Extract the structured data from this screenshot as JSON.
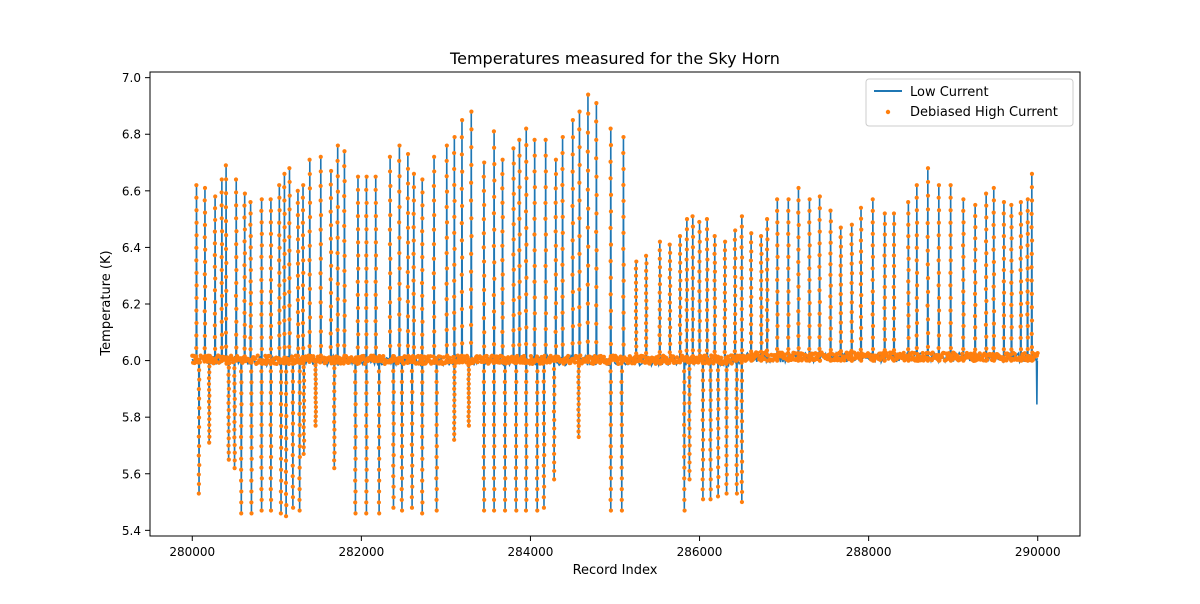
{
  "chart_data": {
    "type": "line",
    "title": "Temperatures measured for the Sky Horn",
    "xlabel": "Record Index",
    "ylabel": "Temperature (K)",
    "xlim": [
      279500,
      290500
    ],
    "ylim": [
      5.38,
      7.02
    ],
    "x_ticks": [
      280000,
      282000,
      284000,
      286000,
      288000,
      290000
    ],
    "y_ticks": [
      5.4,
      5.6,
      5.8,
      6.0,
      6.2,
      6.4,
      6.6,
      6.8,
      7.0
    ],
    "x_tick_labels": [
      "280000",
      "282000",
      "284000",
      "286000",
      "288000",
      "290000"
    ],
    "y_tick_labels": [
      "5.4",
      "5.6",
      "5.8",
      "6.0",
      "6.2",
      "6.4",
      "6.6",
      "6.8",
      "7.0"
    ],
    "grid": false,
    "legend": {
      "position": "top-right",
      "entries": [
        "Low Current",
        "Debiased High Current"
      ]
    },
    "baseline": 6.0,
    "x_range": [
      280000,
      290000
    ],
    "series": [
      {
        "name": "Low Current",
        "kind": "line",
        "color": "#1f77b4"
      },
      {
        "name": "Debiased High Current",
        "kind": "scatter",
        "color": "#ff7f0e"
      }
    ],
    "spikes": [
      {
        "x": 280050,
        "peak": 6.62
      },
      {
        "x": 280150,
        "peak": 6.61
      },
      {
        "x": 280270,
        "peak": 6.58
      },
      {
        "x": 280350,
        "peak": 6.64
      },
      {
        "x": 280400,
        "peak": 6.69
      },
      {
        "x": 280520,
        "peak": 6.64
      },
      {
        "x": 280620,
        "peak": 6.59
      },
      {
        "x": 280690,
        "peak": 6.56
      },
      {
        "x": 280820,
        "peak": 6.57
      },
      {
        "x": 280930,
        "peak": 6.57
      },
      {
        "x": 281030,
        "peak": 6.62
      },
      {
        "x": 281090,
        "peak": 6.66
      },
      {
        "x": 281150,
        "peak": 6.68
      },
      {
        "x": 281250,
        "peak": 6.6
      },
      {
        "x": 281310,
        "peak": 6.62
      },
      {
        "x": 281390,
        "peak": 6.71
      },
      {
        "x": 281520,
        "peak": 6.72
      },
      {
        "x": 281640,
        "peak": 6.67
      },
      {
        "x": 281720,
        "peak": 6.76
      },
      {
        "x": 281800,
        "peak": 6.74
      },
      {
        "x": 281960,
        "peak": 6.65
      },
      {
        "x": 282060,
        "peak": 6.65
      },
      {
        "x": 282170,
        "peak": 6.65
      },
      {
        "x": 282340,
        "peak": 6.72
      },
      {
        "x": 282450,
        "peak": 6.76
      },
      {
        "x": 282550,
        "peak": 6.73
      },
      {
        "x": 282620,
        "peak": 6.66
      },
      {
        "x": 282720,
        "peak": 6.64
      },
      {
        "x": 282860,
        "peak": 6.72
      },
      {
        "x": 283010,
        "peak": 6.76
      },
      {
        "x": 283100,
        "peak": 6.79
      },
      {
        "x": 283190,
        "peak": 6.85
      },
      {
        "x": 283300,
        "peak": 6.88
      },
      {
        "x": 283450,
        "peak": 6.7
      },
      {
        "x": 283570,
        "peak": 6.81
      },
      {
        "x": 283670,
        "peak": 6.71
      },
      {
        "x": 283800,
        "peak": 6.75
      },
      {
        "x": 283870,
        "peak": 6.78
      },
      {
        "x": 283950,
        "peak": 6.82
      },
      {
        "x": 284050,
        "peak": 6.78
      },
      {
        "x": 284180,
        "peak": 6.78
      },
      {
        "x": 284300,
        "peak": 6.71
      },
      {
        "x": 284380,
        "peak": 6.79
      },
      {
        "x": 284500,
        "peak": 6.85
      },
      {
        "x": 284580,
        "peak": 6.88
      },
      {
        "x": 284680,
        "peak": 6.94
      },
      {
        "x": 284780,
        "peak": 6.91
      },
      {
        "x": 284950,
        "peak": 6.82
      },
      {
        "x": 285100,
        "peak": 6.79
      },
      {
        "x": 285250,
        "peak": 6.35
      },
      {
        "x": 285370,
        "peak": 6.37
      },
      {
        "x": 285530,
        "peak": 6.42
      },
      {
        "x": 285650,
        "peak": 6.41
      },
      {
        "x": 285770,
        "peak": 6.44
      },
      {
        "x": 285850,
        "peak": 6.5
      },
      {
        "x": 285920,
        "peak": 6.51
      },
      {
        "x": 286000,
        "peak": 6.49
      },
      {
        "x": 286090,
        "peak": 6.5
      },
      {
        "x": 286180,
        "peak": 6.44
      },
      {
        "x": 286300,
        "peak": 6.42
      },
      {
        "x": 286420,
        "peak": 6.46
      },
      {
        "x": 286500,
        "peak": 6.51
      },
      {
        "x": 286610,
        "peak": 6.45
      },
      {
        "x": 286730,
        "peak": 6.44
      },
      {
        "x": 286800,
        "peak": 6.5
      },
      {
        "x": 286920,
        "peak": 6.57
      },
      {
        "x": 287050,
        "peak": 6.57
      },
      {
        "x": 287170,
        "peak": 6.61
      },
      {
        "x": 287300,
        "peak": 6.57
      },
      {
        "x": 287420,
        "peak": 6.58
      },
      {
        "x": 287550,
        "peak": 6.53
      },
      {
        "x": 287670,
        "peak": 6.47
      },
      {
        "x": 287800,
        "peak": 6.48
      },
      {
        "x": 287910,
        "peak": 6.54
      },
      {
        "x": 288050,
        "peak": 6.57
      },
      {
        "x": 288190,
        "peak": 6.52
      },
      {
        "x": 288300,
        "peak": 6.52
      },
      {
        "x": 288470,
        "peak": 6.56
      },
      {
        "x": 288570,
        "peak": 6.62
      },
      {
        "x": 288700,
        "peak": 6.68
      },
      {
        "x": 288830,
        "peak": 6.62
      },
      {
        "x": 288970,
        "peak": 6.62
      },
      {
        "x": 289120,
        "peak": 6.57
      },
      {
        "x": 289260,
        "peak": 6.55
      },
      {
        "x": 289390,
        "peak": 6.59
      },
      {
        "x": 289480,
        "peak": 6.61
      },
      {
        "x": 289600,
        "peak": 6.56
      },
      {
        "x": 289690,
        "peak": 6.55
      },
      {
        "x": 289800,
        "peak": 6.56
      },
      {
        "x": 289880,
        "peak": 6.57
      },
      {
        "x": 289930,
        "peak": 6.66
      }
    ],
    "dips": [
      {
        "x": 280080,
        "trough": 5.53
      },
      {
        "x": 280200,
        "trough": 5.71
      },
      {
        "x": 280430,
        "trough": 5.65
      },
      {
        "x": 280500,
        "trough": 5.62
      },
      {
        "x": 280580,
        "trough": 5.46
      },
      {
        "x": 280700,
        "trough": 5.46
      },
      {
        "x": 280820,
        "trough": 5.47
      },
      {
        "x": 280930,
        "trough": 5.47
      },
      {
        "x": 281050,
        "trough": 5.46
      },
      {
        "x": 281110,
        "trough": 5.45
      },
      {
        "x": 281190,
        "trough": 5.48
      },
      {
        "x": 281270,
        "trough": 5.47
      },
      {
        "x": 281320,
        "trough": 5.67
      },
      {
        "x": 281460,
        "trough": 5.77
      },
      {
        "x": 281680,
        "trough": 5.62
      },
      {
        "x": 281930,
        "trough": 5.46
      },
      {
        "x": 282060,
        "trough": 5.46
      },
      {
        "x": 282210,
        "trough": 5.46
      },
      {
        "x": 282380,
        "trough": 5.48
      },
      {
        "x": 282480,
        "trough": 5.47
      },
      {
        "x": 282600,
        "trough": 5.48
      },
      {
        "x": 282720,
        "trough": 5.46
      },
      {
        "x": 282890,
        "trough": 5.47
      },
      {
        "x": 283100,
        "trough": 5.72
      },
      {
        "x": 283270,
        "trough": 5.77
      },
      {
        "x": 283450,
        "trough": 5.47
      },
      {
        "x": 283570,
        "trough": 5.47
      },
      {
        "x": 283700,
        "trough": 5.47
      },
      {
        "x": 283830,
        "trough": 5.47
      },
      {
        "x": 283950,
        "trough": 5.47
      },
      {
        "x": 284080,
        "trough": 5.47
      },
      {
        "x": 284160,
        "trough": 5.48
      },
      {
        "x": 284280,
        "trough": 5.58
      },
      {
        "x": 284570,
        "trough": 5.73
      },
      {
        "x": 284950,
        "trough": 5.47
      },
      {
        "x": 285080,
        "trough": 5.47
      },
      {
        "x": 285820,
        "trough": 5.47
      },
      {
        "x": 285880,
        "trough": 5.58
      },
      {
        "x": 286040,
        "trough": 5.51
      },
      {
        "x": 286130,
        "trough": 5.51
      },
      {
        "x": 286220,
        "trough": 5.52
      },
      {
        "x": 286320,
        "trough": 5.53
      },
      {
        "x": 286440,
        "trough": 5.53
      },
      {
        "x": 286500,
        "trough": 5.5
      }
    ]
  }
}
